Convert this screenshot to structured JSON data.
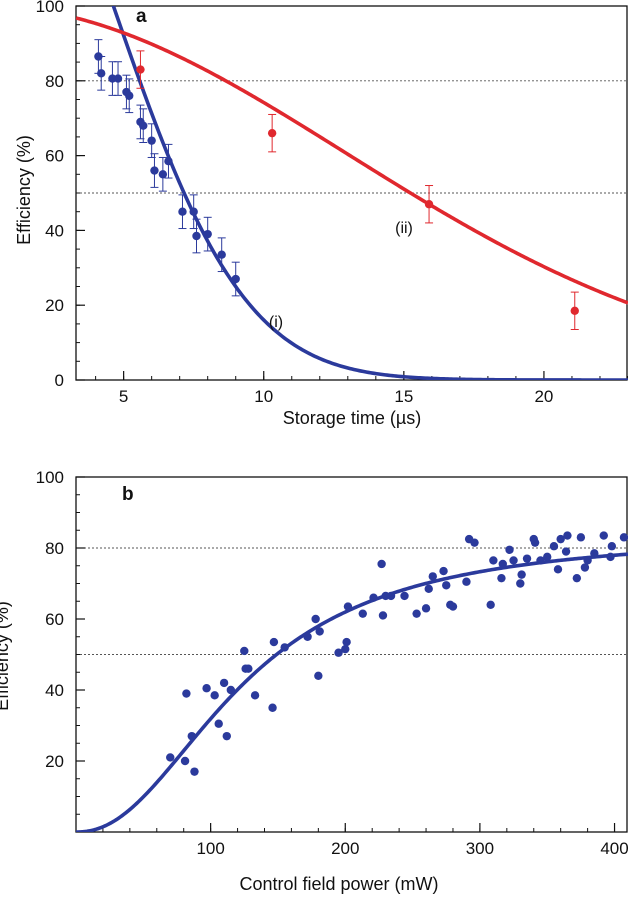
{
  "chart_data": [
    {
      "type": "scatter",
      "panel_label": "a",
      "xlabel": "Storage time (µs)",
      "ylabel": "Efficiency (%)",
      "xlim": [
        3.3,
        23
      ],
      "ylim": [
        0,
        100
      ],
      "xticks": [
        5,
        10,
        15,
        20
      ],
      "yticks": [
        0,
        20,
        40,
        60,
        80,
        100
      ],
      "reference_lines_y": [
        80,
        50
      ],
      "series": [
        {
          "label": "(i)",
          "color": "#2b3a9c",
          "points": [
            {
              "x": 4.1,
              "y": 86.5,
              "err": 4.5
            },
            {
              "x": 4.2,
              "y": 82.0,
              "err": 4.5
            },
            {
              "x": 4.6,
              "y": 80.6,
              "err": 4.5
            },
            {
              "x": 4.8,
              "y": 80.6,
              "err": 4.5
            },
            {
              "x": 5.1,
              "y": 77.0,
              "err": 4.5
            },
            {
              "x": 5.2,
              "y": 76.0,
              "err": 4.5
            },
            {
              "x": 5.6,
              "y": 69.0,
              "err": 4.5
            },
            {
              "x": 5.7,
              "y": 68.0,
              "err": 4.5
            },
            {
              "x": 6.0,
              "y": 64.0,
              "err": 4.5
            },
            {
              "x": 6.1,
              "y": 56.0,
              "err": 4.5
            },
            {
              "x": 6.4,
              "y": 55.0,
              "err": 4.5
            },
            {
              "x": 6.6,
              "y": 58.5,
              "err": 4.5
            },
            {
              "x": 7.1,
              "y": 45.0,
              "err": 4.5
            },
            {
              "x": 7.5,
              "y": 45.0,
              "err": 4.5
            },
            {
              "x": 7.6,
              "y": 38.5,
              "err": 4.5
            },
            {
              "x": 8.0,
              "y": 39.0,
              "err": 4.5
            },
            {
              "x": 8.5,
              "y": 33.5,
              "err": 4.5
            },
            {
              "x": 9.0,
              "y": 27.0,
              "err": 4.5
            }
          ],
          "fit": {
            "model": "gaussian",
            "amplitude": 165,
            "tau": 6.55
          }
        },
        {
          "label": "(ii)",
          "color": "#e0282e",
          "points": [
            {
              "x": 5.6,
              "y": 83.0,
              "err": 5.0
            },
            {
              "x": 10.3,
              "y": 66.0,
              "err": 5.0
            },
            {
              "x": 15.9,
              "y": 47.0,
              "err": 5.0
            },
            {
              "x": 21.1,
              "y": 18.5,
              "err": 5.0
            }
          ],
          "fit": {
            "model": "gaussian",
            "amplitude": 100,
            "tau": 18.3
          }
        }
      ]
    },
    {
      "type": "scatter",
      "panel_label": "b",
      "xlabel": "Control field power (mW)",
      "ylabel": "Efficiency (%)",
      "xlim": [
        0,
        410
      ],
      "ylim": [
        0,
        100
      ],
      "xticks": [
        100,
        200,
        300,
        400
      ],
      "yticks": [
        20,
        40,
        60,
        80,
        100
      ],
      "reference_lines_y": [
        80,
        50
      ],
      "series": [
        {
          "color": "#2b3a9c",
          "points": [
            [
              70,
              21
            ],
            [
              81,
              20
            ],
            [
              82,
              39
            ],
            [
              86,
              27
            ],
            [
              88,
              17
            ],
            [
              97,
              40.5
            ],
            [
              103,
              38.5
            ],
            [
              106,
              30.5
            ],
            [
              110,
              42
            ],
            [
              112,
              27
            ],
            [
              115,
              40
            ],
            [
              125,
              51
            ],
            [
              126,
              46
            ],
            [
              128,
              46
            ],
            [
              133,
              38.5
            ],
            [
              146,
              35
            ],
            [
              147,
              53.5
            ],
            [
              155,
              52
            ],
            [
              172,
              55
            ],
            [
              178,
              60
            ],
            [
              180,
              44
            ],
            [
              181,
              56.5
            ],
            [
              195,
              50.5
            ],
            [
              200,
              51.5
            ],
            [
              201,
              53.5
            ],
            [
              202,
              63.5
            ],
            [
              213,
              61.5
            ],
            [
              221,
              66
            ],
            [
              227,
              75.5
            ],
            [
              228,
              61
            ],
            [
              230,
              66.5
            ],
            [
              234,
              66.5
            ],
            [
              244,
              66.5
            ],
            [
              253,
              61.5
            ],
            [
              260,
              63
            ],
            [
              262,
              68.5
            ],
            [
              265,
              72
            ],
            [
              273,
              73.5
            ],
            [
              275,
              69.5
            ],
            [
              278,
              64
            ],
            [
              280,
              63.5
            ],
            [
              290,
              70.5
            ],
            [
              292,
              82.5
            ],
            [
              296,
              81.5
            ],
            [
              308,
              64
            ],
            [
              310,
              76.5
            ],
            [
              316,
              71.5
            ],
            [
              317,
              75.5
            ],
            [
              322,
              79.5
            ],
            [
              325,
              76.5
            ],
            [
              330,
              70
            ],
            [
              331,
              72.5
            ],
            [
              335,
              77
            ],
            [
              340,
              82.5
            ],
            [
              341,
              81.5
            ],
            [
              345,
              76.5
            ],
            [
              350,
              77.5
            ],
            [
              355,
              80.5
            ],
            [
              358,
              74
            ],
            [
              360,
              82.5
            ],
            [
              364,
              79
            ],
            [
              365,
              83.5
            ],
            [
              372,
              71.5
            ],
            [
              375,
              83
            ],
            [
              378,
              74.5
            ],
            [
              380,
              76.5
            ],
            [
              385,
              78.5
            ],
            [
              392,
              83.5
            ],
            [
              397,
              77.5
            ],
            [
              398,
              80.5
            ],
            [
              407,
              83
            ]
          ],
          "fit": {
            "model": "sigmoid",
            "ymax": 84,
            "p0": 125,
            "n": 2.2
          }
        }
      ]
    }
  ]
}
